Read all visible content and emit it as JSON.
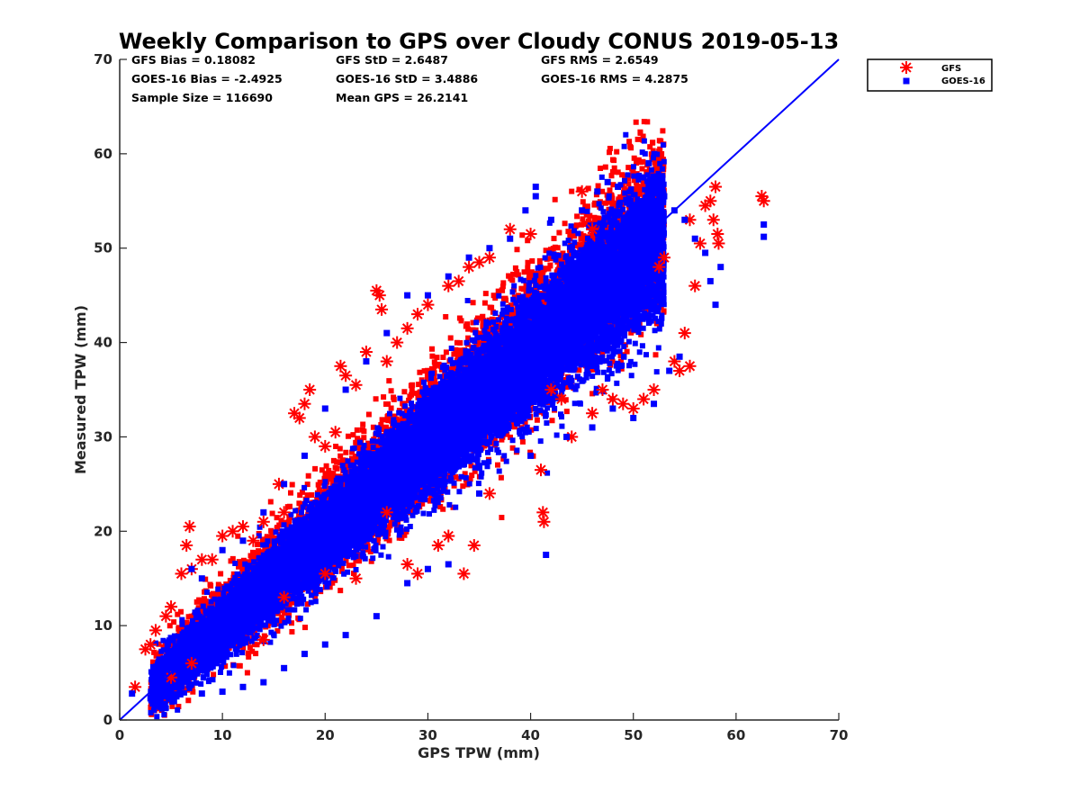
{
  "chart_data": {
    "type": "scatter",
    "title": "Weekly Comparison to GPS over Cloudy CONUS 2019-05-13",
    "xlabel": "GPS TPW (mm)",
    "ylabel": "Measured TPW (mm)",
    "xlim": [
      0,
      70
    ],
    "ylim": [
      0,
      70
    ],
    "xticks": [
      "0",
      "10",
      "20",
      "30",
      "40",
      "50",
      "60",
      "70"
    ],
    "yticks": [
      "0",
      "10",
      "20",
      "30",
      "40",
      "50",
      "60",
      "70"
    ],
    "grid": false,
    "legend_placement": "outside-top-right",
    "one_to_one_line": [
      [
        0,
        0
      ],
      [
        70,
        70
      ]
    ],
    "stats": [
      [
        "GFS Bias = 0.18082",
        "GFS StD = 2.6487",
        "GFS RMS = 2.6549"
      ],
      [
        "GOES-16 Bias = -2.4925",
        "GOES-16 StD = 3.4886",
        "GOES-16 RMS = 4.2875"
      ],
      [
        "Sample Size = 116690",
        "Mean GPS = 26.2141",
        ""
      ]
    ],
    "series": [
      {
        "name": "GFS",
        "color": "#ff0000",
        "marker": "asterisk",
        "points": [
          [
            1.5,
            3.5
          ],
          [
            2.5,
            7.5
          ],
          [
            3,
            8
          ],
          [
            3.5,
            9.5
          ],
          [
            4.5,
            11
          ],
          [
            5,
            12
          ],
          [
            6,
            15.5
          ],
          [
            6.5,
            18.5
          ],
          [
            6.8,
            20.5
          ],
          [
            7,
            16
          ],
          [
            8,
            17
          ],
          [
            9,
            17
          ],
          [
            10,
            19.5
          ],
          [
            11,
            20
          ],
          [
            12,
            20.5
          ],
          [
            13,
            19
          ],
          [
            14,
            21
          ],
          [
            15.5,
            25
          ],
          [
            16,
            22
          ],
          [
            17,
            32.5
          ],
          [
            17.5,
            32
          ],
          [
            18,
            33.5
          ],
          [
            18.5,
            35
          ],
          [
            19,
            30
          ],
          [
            20,
            29
          ],
          [
            21,
            30.5
          ],
          [
            21.5,
            37.5
          ],
          [
            22,
            36.5
          ],
          [
            23,
            35.5
          ],
          [
            24,
            39
          ],
          [
            25,
            45.5
          ],
          [
            25.3,
            45
          ],
          [
            25.5,
            43.5
          ],
          [
            26,
            38
          ],
          [
            27,
            40
          ],
          [
            28,
            41.5
          ],
          [
            29,
            43
          ],
          [
            30,
            44
          ],
          [
            32,
            46
          ],
          [
            33,
            46.5
          ],
          [
            34,
            48
          ],
          [
            35,
            48.5
          ],
          [
            36,
            49
          ],
          [
            38,
            52
          ],
          [
            40,
            51.5
          ],
          [
            41.2,
            22
          ],
          [
            41.3,
            21
          ],
          [
            41,
            26.5
          ],
          [
            42,
            35
          ],
          [
            43,
            34
          ],
          [
            45,
            56
          ],
          [
            46,
            52
          ],
          [
            47,
            35
          ],
          [
            48,
            34
          ],
          [
            49,
            33.5
          ],
          [
            50,
            33
          ],
          [
            51,
            34
          ],
          [
            52,
            35
          ],
          [
            52.5,
            48
          ],
          [
            53,
            49
          ],
          [
            54,
            38
          ],
          [
            54.5,
            37
          ],
          [
            55,
            41
          ],
          [
            55.5,
            37.5
          ],
          [
            55.5,
            53
          ],
          [
            56,
            46
          ],
          [
            56.5,
            50.5
          ],
          [
            57,
            54.5
          ],
          [
            57.5,
            55
          ],
          [
            57.8,
            53
          ],
          [
            58,
            56.5
          ],
          [
            58.2,
            51.5
          ],
          [
            58.3,
            50.5
          ],
          [
            62.5,
            55.5
          ],
          [
            62.7,
            55
          ],
          [
            33.5,
            15.5
          ],
          [
            34.5,
            18.5
          ],
          [
            29,
            15.5
          ],
          [
            31,
            18.5
          ],
          [
            32,
            19.5
          ],
          [
            26,
            22
          ],
          [
            5,
            4.5
          ],
          [
            7,
            6
          ],
          [
            14,
            8.5
          ],
          [
            16,
            13
          ],
          [
            20,
            15.5
          ],
          [
            23,
            15
          ],
          [
            28,
            16.5
          ],
          [
            36,
            24
          ],
          [
            44,
            30
          ],
          [
            46,
            32.5
          ]
        ]
      },
      {
        "name": "GOES-16",
        "color": "#0000ff",
        "marker": "square",
        "points": [
          [
            1.2,
            2.8
          ],
          [
            3,
            2.3
          ],
          [
            6,
            4.5
          ],
          [
            7,
            16
          ],
          [
            8,
            15
          ],
          [
            10,
            18
          ],
          [
            12,
            19
          ],
          [
            14,
            22
          ],
          [
            16,
            25
          ],
          [
            18,
            28
          ],
          [
            20,
            33
          ],
          [
            22,
            35
          ],
          [
            24,
            38
          ],
          [
            26,
            41
          ],
          [
            28,
            45
          ],
          [
            30,
            45
          ],
          [
            32,
            47
          ],
          [
            34,
            49
          ],
          [
            36,
            50
          ],
          [
            38,
            51
          ],
          [
            39.5,
            54
          ],
          [
            40.5,
            55.5
          ],
          [
            40.5,
            56.5
          ],
          [
            42,
            53
          ],
          [
            45,
            54
          ],
          [
            46.5,
            56
          ],
          [
            47.5,
            57
          ],
          [
            48.5,
            56.5
          ],
          [
            51,
            57.5
          ],
          [
            51.5,
            59
          ],
          [
            53,
            55.5
          ],
          [
            54,
            54
          ],
          [
            55,
            53
          ],
          [
            56,
            51
          ],
          [
            57,
            49.5
          ],
          [
            57.5,
            46.5
          ],
          [
            58,
            44
          ],
          [
            58.5,
            48
          ],
          [
            62.7,
            52.5
          ],
          [
            62.7,
            51.2
          ],
          [
            41.5,
            17.5
          ],
          [
            40,
            28
          ],
          [
            43.5,
            30
          ],
          [
            46,
            31
          ],
          [
            48,
            33
          ],
          [
            50,
            32
          ],
          [
            52,
            33.5
          ],
          [
            53.5,
            37
          ],
          [
            54.5,
            38.5
          ],
          [
            35,
            24
          ],
          [
            32,
            16.5
          ],
          [
            30,
            16
          ],
          [
            28,
            14.5
          ],
          [
            25,
            11
          ],
          [
            22,
            9
          ],
          [
            20,
            8
          ],
          [
            18,
            7
          ],
          [
            16,
            5.5
          ],
          [
            14,
            4
          ],
          [
            12,
            3.5
          ],
          [
            10,
            3
          ],
          [
            8,
            2.8
          ],
          [
            5,
            3.2
          ]
        ]
      }
    ]
  }
}
